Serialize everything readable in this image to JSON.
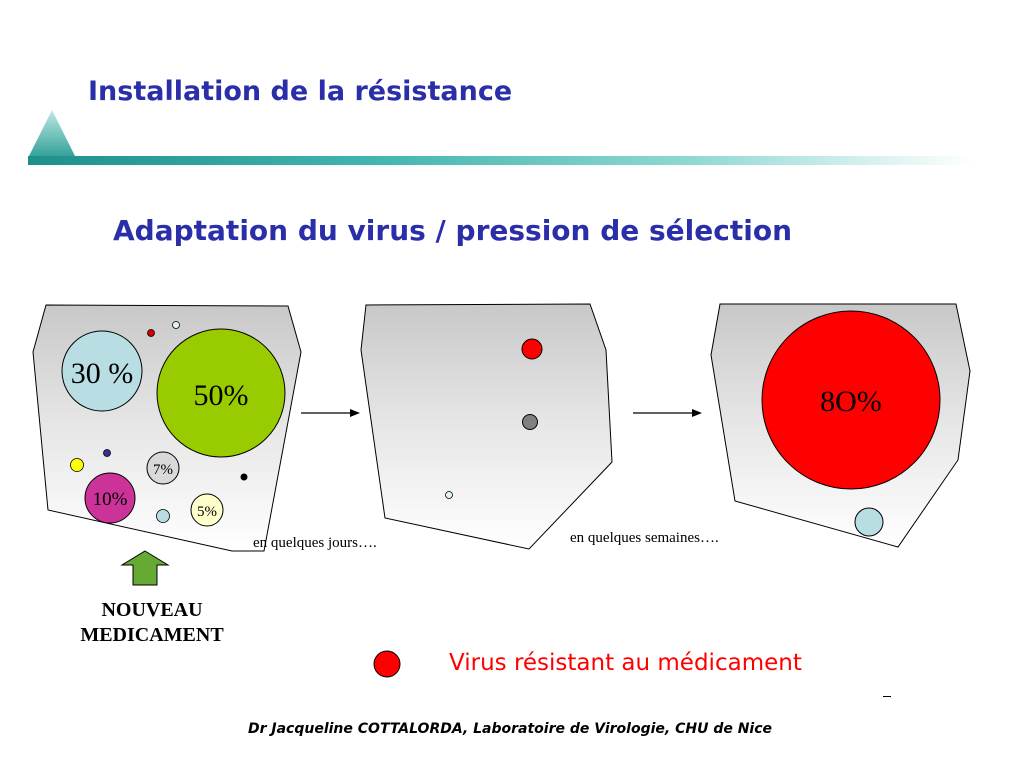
{
  "slide": {
    "title": "Installation de la résistance",
    "subtitle": "Adaptation du virus / pression de sélection",
    "footer": "Dr Jacqueline COTTALORDA, Laboratoire de Virologie, CHU de Nice",
    "accent_color": "#2a2ea8",
    "bar_color": "#3fb3ad"
  },
  "panel1": {
    "labels": {
      "p30": "30 %",
      "p50": "50%",
      "p7": "7%",
      "p10": "10%",
      "p5": "5%"
    },
    "colors": {
      "p30": "#b8dde3",
      "p50": "#99cc00",
      "p7": "#d9d9d9",
      "p10": "#cc3399",
      "p5": "#ffffcc"
    },
    "caption": "en quelques jours…."
  },
  "panel2": {
    "caption": "en quelques semaines…."
  },
  "panel3": {
    "label": "8O%",
    "color": "#ff0000"
  },
  "new_drug": {
    "line1": "NOUVEAU",
    "line2": "MEDICAMENT",
    "arrow_color": "#66aa33"
  },
  "legend": {
    "label": "Virus résistant au médicament",
    "color": "#ff0000"
  }
}
